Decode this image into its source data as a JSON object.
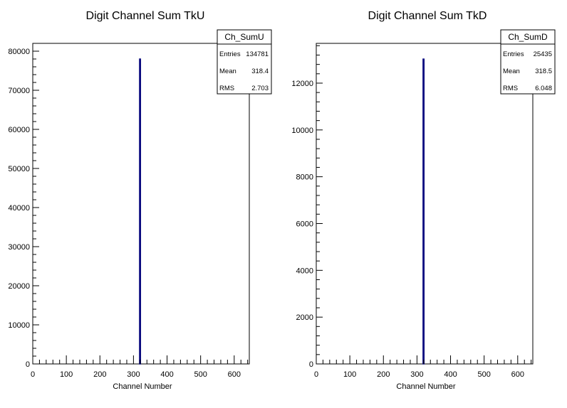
{
  "chart_data": [
    {
      "type": "bar",
      "title": "Digit Channel Sum TkU",
      "xlabel": "Channel Number",
      "ylabel": "",
      "xlim": [
        0,
        645
      ],
      "ylim": [
        0,
        82000
      ],
      "x_ticks": [
        0,
        100,
        200,
        300,
        400,
        500,
        600
      ],
      "y_ticks": [
        0,
        10000,
        20000,
        30000,
        40000,
        50000,
        60000,
        70000,
        80000
      ],
      "bins": [
        {
          "x_low": 318,
          "x_high": 321,
          "value": 78000
        }
      ],
      "color": "#00007a",
      "stats": {
        "name": "Ch_SumU",
        "rows": [
          {
            "label": "Entries",
            "value": "134781"
          },
          {
            "label": "Mean",
            "value": "318.4"
          },
          {
            "label": "RMS",
            "value": "2.703"
          }
        ]
      }
    },
    {
      "type": "bar",
      "title": "Digit Channel Sum TkD",
      "xlabel": "Channel Number",
      "ylabel": "",
      "xlim": [
        0,
        645
      ],
      "ylim": [
        0,
        13700
      ],
      "x_ticks": [
        0,
        100,
        200,
        300,
        400,
        500,
        600
      ],
      "y_ticks": [
        0,
        2000,
        4000,
        6000,
        8000,
        10000,
        12000
      ],
      "bins": [
        {
          "x_low": 318,
          "x_high": 321,
          "value": 13030
        }
      ],
      "color": "#00007a",
      "stats": {
        "name": "Ch_SumD",
        "rows": [
          {
            "label": "Entries",
            "value": "25435"
          },
          {
            "label": "Mean",
            "value": "318.5"
          },
          {
            "label": "RMS",
            "value": "6.048"
          }
        ]
      }
    }
  ]
}
